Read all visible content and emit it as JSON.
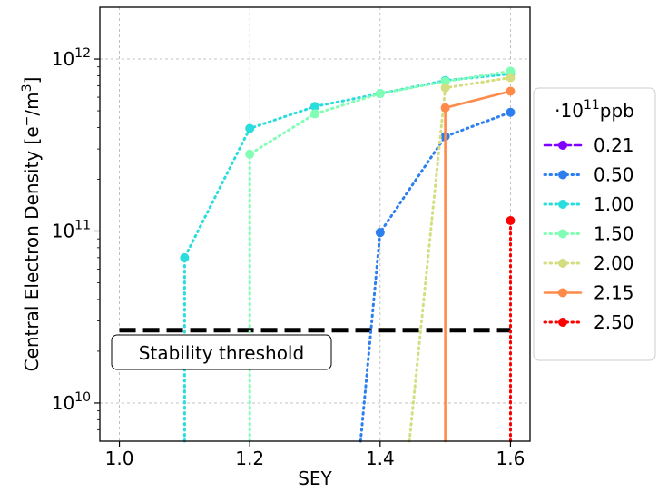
{
  "chart_data": {
    "type": "line",
    "xlabel": "SEY",
    "ylabel": "Central Electron Density [e⁻/m³]",
    "ylabel_main": "Central Electron Density [e",
    "ylabel_sup1": "−",
    "ylabel_mid": "/m",
    "ylabel_sup2": "3",
    "ylabel_end": "]",
    "x_scale": "linear",
    "y_scale": "log",
    "xlim": [
      0.97,
      1.63
    ],
    "ylim": [
      6000000000.0,
      2000000000000.0
    ],
    "grid": true,
    "xticks": [
      {
        "value": 1.0,
        "label": "1.0"
      },
      {
        "value": 1.2,
        "label": "1.2"
      },
      {
        "value": 1.4,
        "label": "1.4"
      },
      {
        "value": 1.6,
        "label": "1.6"
      }
    ],
    "yticks": [
      {
        "value": 10000000000.0,
        "base": "10",
        "exp": "10"
      },
      {
        "value": 100000000000.0,
        "base": "10",
        "exp": "11"
      },
      {
        "value": 1000000000000.0,
        "base": "10",
        "exp": "12"
      }
    ],
    "legend": {
      "title_prefix": "·10",
      "title_exp": "11",
      "title_suffix": "ppb",
      "placement": "outside right"
    },
    "threshold": {
      "label": "Stability threshold",
      "value": 26500000000.0,
      "x_range": [
        1.0,
        1.6
      ],
      "color": "#000000",
      "style": "dashed"
    },
    "series": [
      {
        "name": "0.21",
        "color": "#8000ff",
        "style": "dashed",
        "x": [],
        "y": []
      },
      {
        "name": "0.50",
        "color": "#2d7fef",
        "style": "dotted",
        "x": [
          1.37,
          1.4,
          1.5,
          1.6
        ],
        "y": [
          6000000000.0,
          98000000000.0,
          355000000000.0,
          490000000000.0
        ],
        "markers": [
          false,
          true,
          true,
          true
        ]
      },
      {
        "name": "1.00",
        "color": "#2adddd",
        "style": "dotted",
        "x": [
          1.1,
          1.1,
          1.2,
          1.3,
          1.4,
          1.5,
          1.6
        ],
        "y": [
          6000000000.0,
          70000000000.0,
          395000000000.0,
          530000000000.0,
          630000000000.0,
          750000000000.0,
          820000000000.0
        ],
        "markers": [
          false,
          true,
          true,
          true,
          true,
          true,
          true
        ]
      },
      {
        "name": "1.50",
        "color": "#80ffb4",
        "style": "dotted",
        "x": [
          1.2,
          1.2,
          1.3,
          1.4,
          1.5,
          1.6
        ],
        "y": [
          6000000000.0,
          280000000000.0,
          480000000000.0,
          630000000000.0,
          740000000000.0,
          850000000000.0
        ],
        "markers": [
          false,
          true,
          true,
          true,
          true,
          true
        ]
      },
      {
        "name": "2.00",
        "color": "#d4dd80",
        "style": "dotted",
        "x": [
          1.445,
          1.5,
          1.6
        ],
        "y": [
          6000000000.0,
          680000000000.0,
          780000000000.0
        ],
        "markers": [
          false,
          true,
          true
        ]
      },
      {
        "name": "2.15",
        "color": "#ff8a4a",
        "style": "solid",
        "x": [
          1.5,
          1.5,
          1.6
        ],
        "y": [
          6000000000.0,
          520000000000.0,
          650000000000.0
        ],
        "markers": [
          false,
          true,
          true
        ]
      },
      {
        "name": "2.50",
        "color": "#ff0000",
        "style": "dotted",
        "x": [
          1.6,
          1.6
        ],
        "y": [
          6000000000.0,
          115000000000.0
        ],
        "markers": [
          false,
          true
        ]
      }
    ]
  }
}
